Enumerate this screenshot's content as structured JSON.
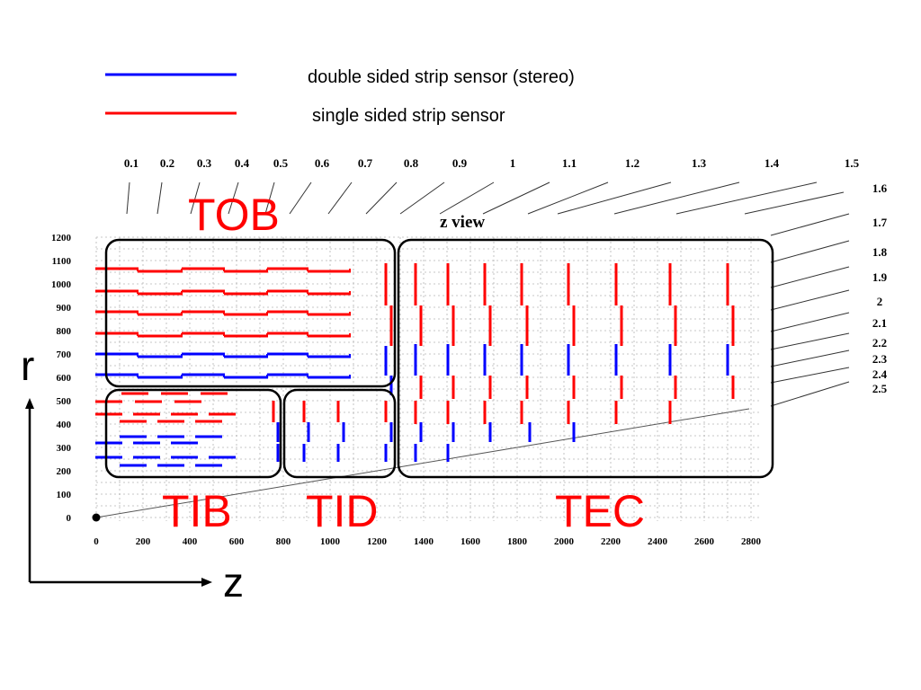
{
  "legend": {
    "stereo_label": "double sided strip sensor (stereo)",
    "single_label": "single sided strip sensor",
    "stereo_color": "#0000ff",
    "single_color": "#ff0000"
  },
  "view_title": "z view",
  "regions": {
    "tob": "TOB",
    "tib": "TIB",
    "tid": "TID",
    "tec": "TEC"
  },
  "axes": {
    "r_label": "r",
    "z_label": "z",
    "x_ticks": [
      "0",
      "200",
      "400",
      "600",
      "800",
      "1000",
      "1200",
      "1400",
      "1600",
      "1800",
      "2000",
      "2200",
      "2400",
      "2600",
      "2800"
    ],
    "y_ticks": [
      "0",
      "100",
      "200",
      "300",
      "400",
      "500",
      "600",
      "700",
      "800",
      "900",
      "1000",
      "1100",
      "1200"
    ],
    "x_range": [
      0,
      2800
    ],
    "y_range": [
      0,
      1200
    ],
    "grid": true
  },
  "eta_labels": [
    "0.1",
    "0.2",
    "0.3",
    "0.4",
    "0.5",
    "0.6",
    "0.7",
    "0.8",
    "0.9",
    "1",
    "1.1",
    "1.2",
    "1.3",
    "1.4",
    "1.5",
    "1.6",
    "1.7",
    "1.8",
    "1.9",
    "2",
    "2.1",
    "2.2",
    "2.3",
    "2.4",
    "2.5"
  ]
}
